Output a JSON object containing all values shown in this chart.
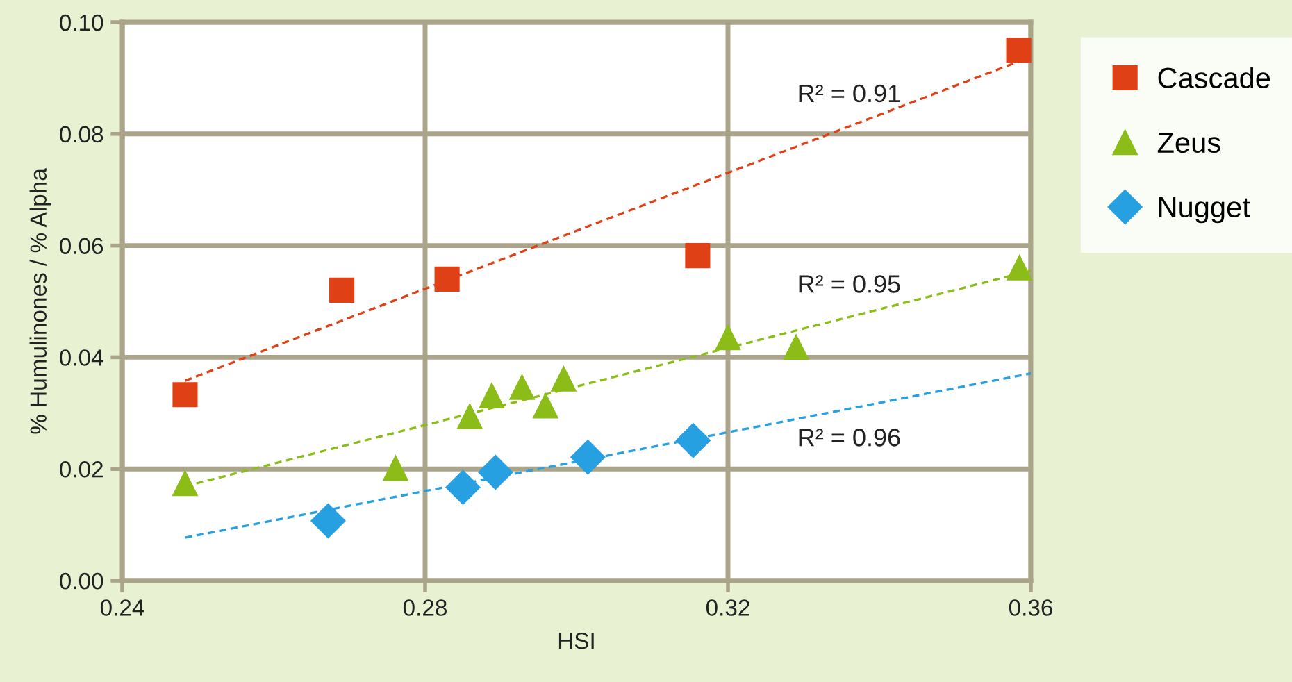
{
  "chart_data": {
    "type": "scatter",
    "xlabel": "HSI",
    "ylabel": "% Humulinones / % Alpha",
    "xlim": [
      0.24,
      0.36
    ],
    "xticks": [
      {
        "value": 0.24,
        "label": "0.24"
      },
      {
        "value": 0.28,
        "label": "0.28"
      },
      {
        "value": 0.32,
        "label": "0.32"
      },
      {
        "value": 0.36,
        "label": "0.36"
      }
    ],
    "ylim": [
      0,
      0.1
    ],
    "yticks": [
      {
        "value": 0,
        "label": "0.00"
      },
      {
        "value": 0.02,
        "label": "0.02"
      },
      {
        "value": 0.04,
        "label": "0.04"
      },
      {
        "value": 0.06,
        "label": "0.06"
      },
      {
        "value": 0.08,
        "label": "0.08"
      },
      {
        "value": 0.1,
        "label": "0.10"
      }
    ],
    "grid": true,
    "legend": "right",
    "series": [
      {
        "name": "Cascade",
        "color": "#e04016",
        "marker": "square",
        "x": [
          0.2483,
          0.269,
          0.2829,
          0.316,
          0.3584
        ],
        "values": [
          0.0333,
          0.052,
          0.054,
          0.0582,
          0.095
        ]
      },
      {
        "name": "Zeus",
        "color": "#8cbc18",
        "marker": "triangle",
        "x": [
          0.2483,
          0.2761,
          0.2859,
          0.2888,
          0.2928,
          0.2959,
          0.2983,
          0.32,
          0.329,
          0.3585
        ],
        "values": [
          0.0174,
          0.0201,
          0.0294,
          0.0331,
          0.0346,
          0.0313,
          0.0361,
          0.0435,
          0.0418,
          0.056
        ]
      },
      {
        "name": "Nugget",
        "color": "#26a0e0",
        "marker": "diamond",
        "x": [
          0.2672,
          0.285,
          0.2893,
          0.3015,
          0.3154
        ],
        "values": [
          0.0107,
          0.0167,
          0.0194,
          0.0221,
          0.0251
        ]
      },
      {
        "type": "line",
        "color": "#e04016",
        "line_style": "dashed",
        "x": [
          0.2483,
          0.36
        ],
        "values": [
          0.0358,
          0.0938
        ]
      },
      {
        "type": "line",
        "color": "#8cbc18",
        "line_style": "dashed",
        "x": [
          0.2483,
          0.36
        ],
        "values": [
          0.0169,
          0.0555
        ]
      },
      {
        "type": "line",
        "color": "#26a0e0",
        "line_style": "dashed",
        "x": [
          0.2483,
          0.36
        ],
        "values": [
          0.0077,
          0.0371
        ]
      }
    ],
    "annotations": [
      "R² = 0.91",
      "R² = 0.95",
      "R² = 0.96"
    ]
  }
}
